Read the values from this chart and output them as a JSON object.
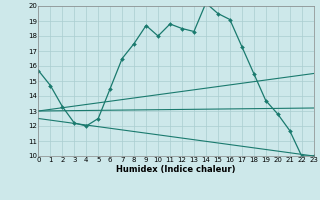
{
  "line1_x": [
    0,
    1,
    2,
    3,
    4,
    5,
    6,
    7,
    8,
    9,
    10,
    11,
    12,
    13,
    14,
    15,
    16,
    17,
    18,
    19,
    20,
    21,
    22,
    23
  ],
  "line1_y": [
    15.7,
    14.7,
    13.3,
    12.2,
    12.0,
    12.5,
    14.5,
    16.5,
    17.5,
    18.7,
    18.0,
    18.8,
    18.5,
    18.3,
    20.2,
    19.5,
    19.1,
    17.3,
    15.5,
    13.7,
    12.8,
    11.7,
    10.0,
    10.0
  ],
  "line2_x": [
    0,
    23
  ],
  "line2_y": [
    13.0,
    15.5
  ],
  "line3_x": [
    0,
    23
  ],
  "line3_y": [
    13.0,
    13.2
  ],
  "line4_x": [
    0,
    23
  ],
  "line4_y": [
    12.5,
    10.0
  ],
  "color": "#1a7a6e",
  "bg_color": "#cde8ea",
  "grid_color": "#aacdd0",
  "xlabel": "Humidex (Indice chaleur)",
  "ylim": [
    10,
    20
  ],
  "xlim": [
    0,
    23
  ],
  "yticks": [
    10,
    11,
    12,
    13,
    14,
    15,
    16,
    17,
    18,
    19,
    20
  ],
  "xticks": [
    0,
    1,
    2,
    3,
    4,
    5,
    6,
    7,
    8,
    9,
    10,
    11,
    12,
    13,
    14,
    15,
    16,
    17,
    18,
    19,
    20,
    21,
    22,
    23
  ]
}
